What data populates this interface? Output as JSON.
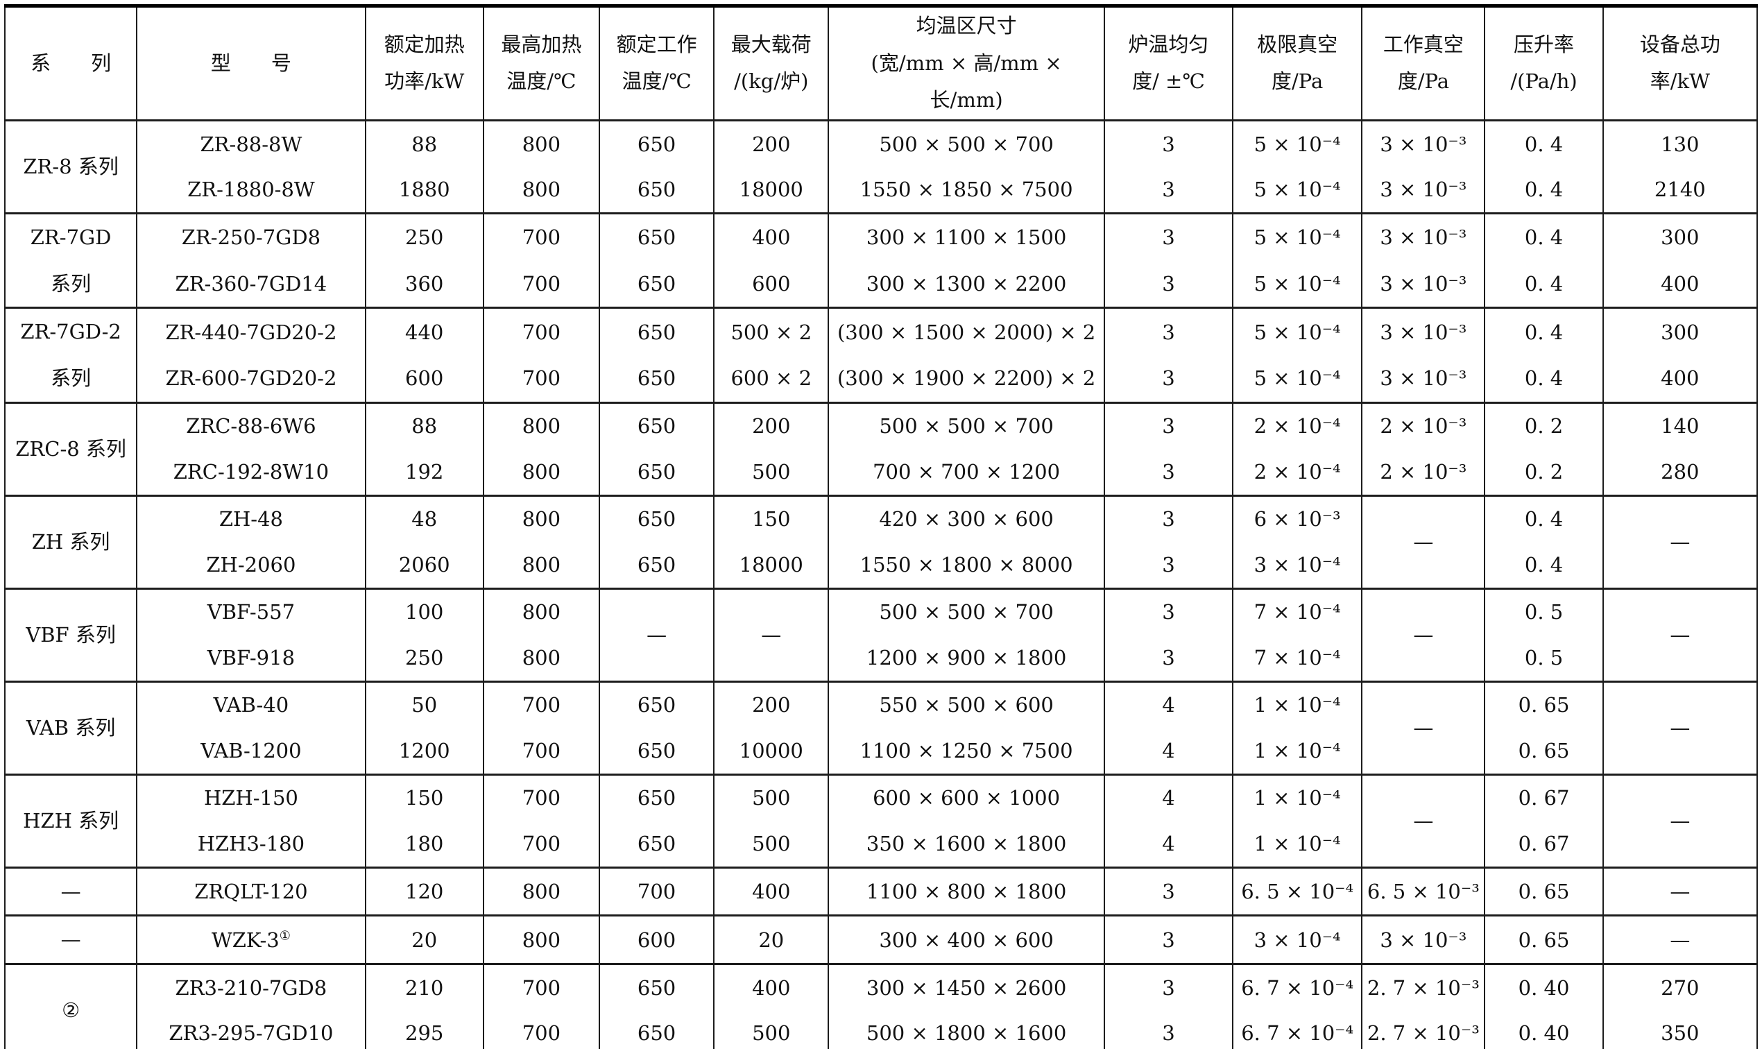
{
  "table": {
    "columns": [
      {
        "key": "series",
        "label": "系　　列"
      },
      {
        "key": "model",
        "label": "型　　号"
      },
      {
        "key": "power",
        "label": "额定加热\n功率/kW"
      },
      {
        "key": "max_temp",
        "label": "最高加热\n温度/℃"
      },
      {
        "key": "work_temp",
        "label": "额定工作\n温度/℃"
      },
      {
        "key": "load",
        "label": "最大载荷\n/(kg/炉)"
      },
      {
        "key": "zone",
        "label": "均温区尺寸\n(宽/mm × 高/mm × 长/mm)"
      },
      {
        "key": "uniformity",
        "label": "炉温均匀\n度/ ±℃"
      },
      {
        "key": "ult_vac",
        "label": "极限真空\n度/Pa"
      },
      {
        "key": "work_vac",
        "label": "工作真空\n度/Pa"
      },
      {
        "key": "leak",
        "label": "压升率\n/(Pa/h)"
      },
      {
        "key": "total_power",
        "label": "设备总功\n率/kW"
      }
    ],
    "groups": [
      {
        "series": "ZR-8 系列",
        "rows": [
          {
            "model": "ZR-88-8W",
            "power": "88",
            "max_temp": "800",
            "work_temp": "650",
            "load": "200",
            "zone": "500 × 500 × 700",
            "uniformity": "3",
            "ult_vac": "5 × 10⁻⁴",
            "work_vac": "3 × 10⁻³",
            "leak": "0. 4",
            "total_power": "130"
          },
          {
            "model": "ZR-1880-8W",
            "power": "1880",
            "max_temp": "800",
            "work_temp": "650",
            "load": "18000",
            "zone": "1550 × 1850 × 7500",
            "uniformity": "3",
            "ult_vac": "5 × 10⁻⁴",
            "work_vac": "3 × 10⁻³",
            "leak": "0. 4",
            "total_power": "2140"
          }
        ]
      },
      {
        "series": "ZR-7GD\n系列",
        "rows": [
          {
            "model": "ZR-250-7GD8",
            "power": "250",
            "max_temp": "700",
            "work_temp": "650",
            "load": "400",
            "zone": "300 × 1100 × 1500",
            "uniformity": "3",
            "ult_vac": "5 × 10⁻⁴",
            "work_vac": "3 × 10⁻³",
            "leak": "0. 4",
            "total_power": "300"
          },
          {
            "model": "ZR-360-7GD14",
            "power": "360",
            "max_temp": "700",
            "work_temp": "650",
            "load": "600",
            "zone": "300 × 1300 × 2200",
            "uniformity": "3",
            "ult_vac": "5 × 10⁻⁴",
            "work_vac": "3 × 10⁻³",
            "leak": "0. 4",
            "total_power": "400"
          }
        ]
      },
      {
        "series": "ZR-7GD-2\n系列",
        "rows": [
          {
            "model": "ZR-440-7GD20-2",
            "power": "440",
            "max_temp": "700",
            "work_temp": "650",
            "load": "500 × 2",
            "zone": "(300 × 1500 × 2000) × 2",
            "uniformity": "3",
            "ult_vac": "5 × 10⁻⁴",
            "work_vac": "3 × 10⁻³",
            "leak": "0. 4",
            "total_power": "300"
          },
          {
            "model": "ZR-600-7GD20-2",
            "power": "600",
            "max_temp": "700",
            "work_temp": "650",
            "load": "600 × 2",
            "zone": "(300 × 1900 × 2200) × 2",
            "uniformity": "3",
            "ult_vac": "5 × 10⁻⁴",
            "work_vac": "3 × 10⁻³",
            "leak": "0. 4",
            "total_power": "400"
          }
        ]
      },
      {
        "series": "ZRC-8 系列",
        "rows": [
          {
            "model": "ZRC-88-6W6",
            "power": "88",
            "max_temp": "800",
            "work_temp": "650",
            "load": "200",
            "zone": "500 × 500 × 700",
            "uniformity": "3",
            "ult_vac": "2 × 10⁻⁴",
            "work_vac": "2 × 10⁻³",
            "leak": "0. 2",
            "total_power": "140"
          },
          {
            "model": "ZRC-192-8W10",
            "power": "192",
            "max_temp": "800",
            "work_temp": "650",
            "load": "500",
            "zone": "700 × 700 × 1200",
            "uniformity": "3",
            "ult_vac": "2 × 10⁻⁴",
            "work_vac": "2 × 10⁻³",
            "leak": "0. 2",
            "total_power": "280"
          }
        ]
      },
      {
        "series": "ZH 系列",
        "merged": {
          "work_vac": "—",
          "total_power": "—"
        },
        "rows": [
          {
            "model": "ZH-48",
            "power": "48",
            "max_temp": "800",
            "work_temp": "650",
            "load": "150",
            "zone": "420 × 300 × 600",
            "uniformity": "3",
            "ult_vac": "6 × 10⁻³",
            "leak": "0. 4"
          },
          {
            "model": "ZH-2060",
            "power": "2060",
            "max_temp": "800",
            "work_temp": "650",
            "load": "18000",
            "zone": "1550 × 1800 × 8000",
            "uniformity": "3",
            "ult_vac": "3 × 10⁻⁴",
            "leak": "0. 4"
          }
        ]
      },
      {
        "series": "VBF 系列",
        "merged": {
          "work_temp": "—",
          "load": "—",
          "work_vac": "—",
          "total_power": "—"
        },
        "rows": [
          {
            "model": "VBF-557",
            "power": "100",
            "max_temp": "800",
            "zone": "500 × 500 × 700",
            "uniformity": "3",
            "ult_vac": "7 × 10⁻⁴",
            "leak": "0. 5"
          },
          {
            "model": "VBF-918",
            "power": "250",
            "max_temp": "800",
            "zone": "1200 × 900 × 1800",
            "uniformity": "3",
            "ult_vac": "7 × 10⁻⁴",
            "leak": "0. 5"
          }
        ]
      },
      {
        "series": "VAB 系列",
        "merged": {
          "work_vac": "—",
          "total_power": "—"
        },
        "rows": [
          {
            "model": "VAB-40",
            "power": "50",
            "max_temp": "700",
            "work_temp": "650",
            "load": "200",
            "zone": "550 × 500 × 600",
            "uniformity": "4",
            "ult_vac": "1 × 10⁻⁴",
            "leak": "0. 65"
          },
          {
            "model": "VAB-1200",
            "power": "1200",
            "max_temp": "700",
            "work_temp": "650",
            "load": "10000",
            "zone": "1100 × 1250 × 7500",
            "uniformity": "4",
            "ult_vac": "1 × 10⁻⁴",
            "leak": "0. 65"
          }
        ]
      },
      {
        "series": "HZH 系列",
        "merged": {
          "work_vac": "—",
          "total_power": "—"
        },
        "rows": [
          {
            "model": "HZH-150",
            "power": "150",
            "max_temp": "700",
            "work_temp": "650",
            "load": "500",
            "zone": "600 × 600 × 1000",
            "uniformity": "4",
            "ult_vac": "1 × 10⁻⁴",
            "leak": "0. 67"
          },
          {
            "model": "HZH3-180",
            "power": "180",
            "max_temp": "700",
            "work_temp": "650",
            "load": "500",
            "zone": "350 × 1600 × 1800",
            "uniformity": "4",
            "ult_vac": "1 × 10⁻⁴",
            "leak": "0. 67"
          }
        ]
      },
      {
        "series": "—",
        "rows": [
          {
            "model": "ZRQLT-120",
            "power": "120",
            "max_temp": "800",
            "work_temp": "700",
            "load": "400",
            "zone": "1100 × 800 × 1800",
            "uniformity": "3",
            "ult_vac": "6. 5 × 10⁻⁴",
            "work_vac": "6. 5 × 10⁻³",
            "leak": "0. 65",
            "total_power": "—"
          }
        ]
      },
      {
        "series": "—",
        "rows": [
          {
            "model": "WZK-3",
            "model_sup": "①",
            "power": "20",
            "max_temp": "800",
            "work_temp": "600",
            "load": "20",
            "zone": "300 × 400 × 600",
            "uniformity": "3",
            "ult_vac": "3 × 10⁻⁴",
            "work_vac": "3 × 10⁻³",
            "leak": "0. 65",
            "total_power": "—"
          }
        ]
      },
      {
        "series": "②",
        "rows": [
          {
            "model": "ZR3-210-7GD8",
            "power": "210",
            "max_temp": "700",
            "work_temp": "650",
            "load": "400",
            "zone": "300 × 1450 × 2600",
            "uniformity": "3",
            "ult_vac": "6. 7 × 10⁻⁴",
            "work_vac": "2. 7 × 10⁻³",
            "leak": "0. 40",
            "total_power": "270"
          },
          {
            "model": "ZR3-295-7GD10",
            "power": "295",
            "max_temp": "700",
            "work_temp": "650",
            "load": "500",
            "zone": "500 × 1800 × 1600",
            "uniformity": "3",
            "ult_vac": "6. 7 × 10⁻⁴",
            "work_vac": "2. 7 × 10⁻³",
            "leak": "0. 40",
            "total_power": "350"
          }
        ]
      }
    ]
  }
}
